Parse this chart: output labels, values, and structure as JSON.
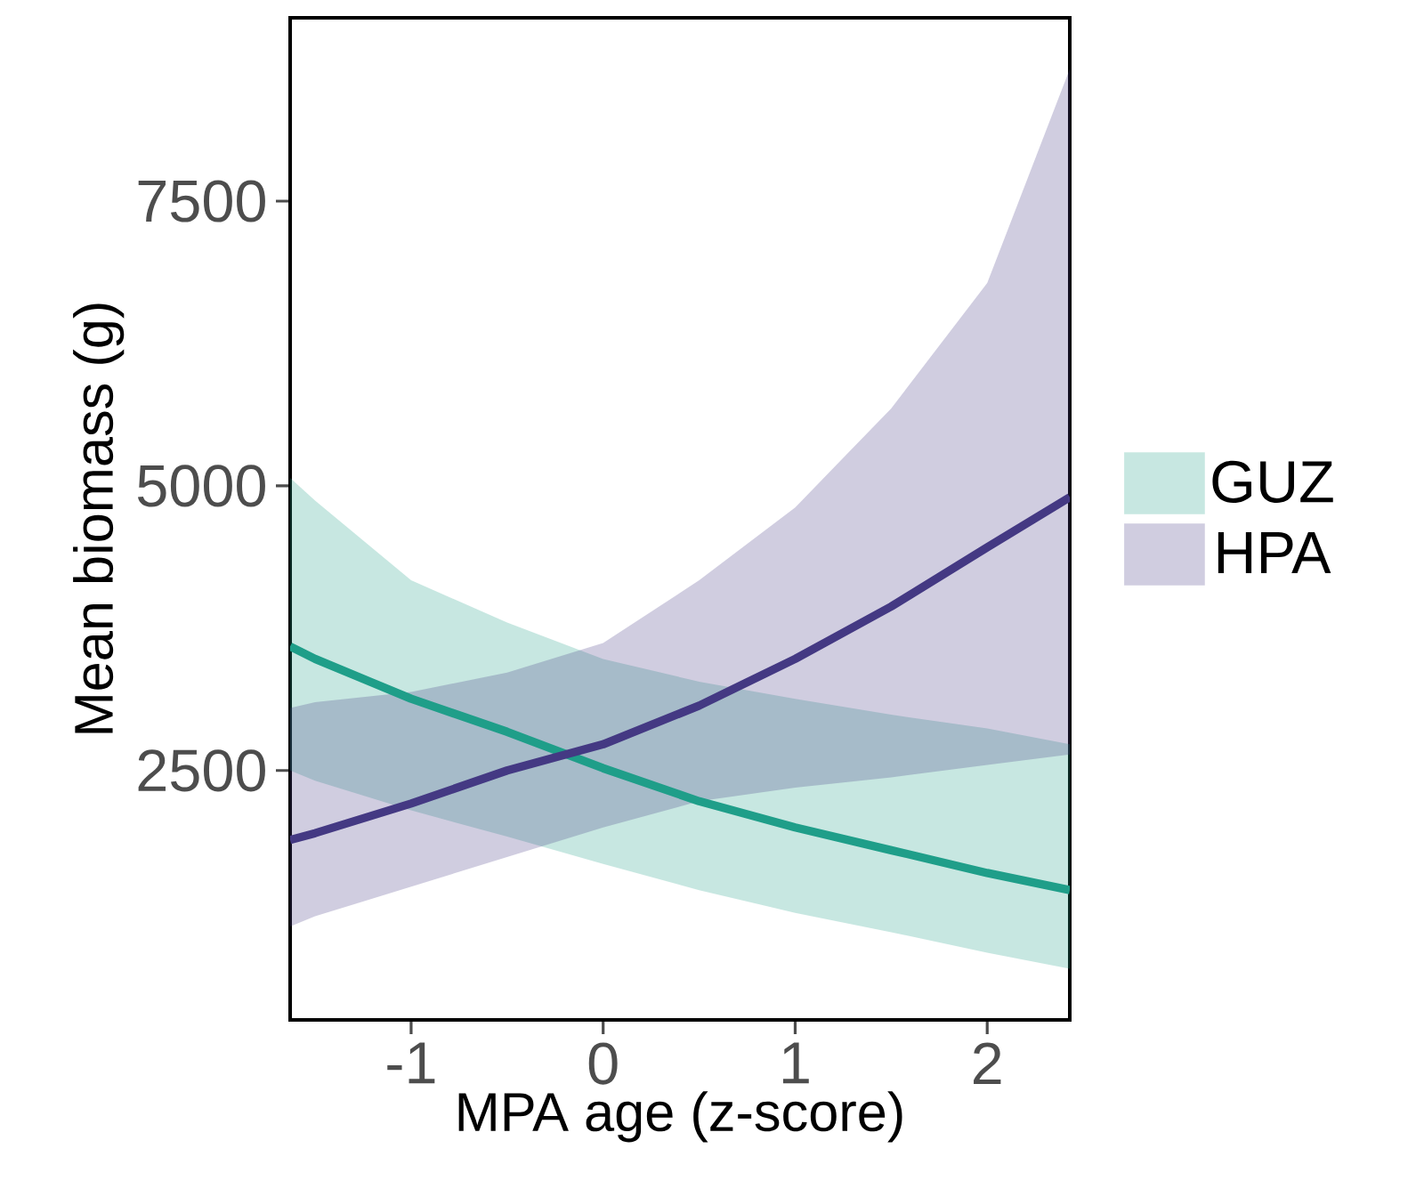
{
  "chart_data": {
    "type": "line",
    "xlabel": "MPA age (z-score)",
    "ylabel": "Mean biomass (g)",
    "x": [
      -1.63,
      -1.5,
      -1,
      -0.5,
      0,
      0.5,
      1,
      1.5,
      2,
      2.43
    ],
    "series": [
      {
        "name": "GUZ",
        "color": "#1f9e89",
        "values": [
          3590,
          3480,
          3130,
          2840,
          2520,
          2230,
          2000,
          1800,
          1600,
          1450
        ],
        "lower": [
          2500,
          2410,
          2150,
          1920,
          1680,
          1450,
          1250,
          1080,
          900,
          760
        ],
        "upper": [
          5070,
          4870,
          4170,
          3800,
          3480,
          3280,
          3130,
          2990,
          2870,
          2730
        ]
      },
      {
        "name": "HPA",
        "color": "#443983",
        "values": [
          1890,
          1950,
          2210,
          2500,
          2730,
          3070,
          3480,
          3940,
          4460,
          4900
        ],
        "lower": [
          1130,
          1220,
          1480,
          1740,
          2000,
          2230,
          2350,
          2440,
          2550,
          2640
        ],
        "upper": [
          3050,
          3100,
          3190,
          3360,
          3620,
          4170,
          4810,
          5680,
          6780,
          8660
        ]
      }
    ],
    "xlim": [
      -1.63,
      2.43
    ],
    "ylim": [
      310,
      9110
    ],
    "xticks": [
      {
        "value": -1,
        "label": "-1"
      },
      0,
      1,
      2
    ],
    "yticks": [
      2500,
      5000,
      7500
    ],
    "legend": "right"
  }
}
